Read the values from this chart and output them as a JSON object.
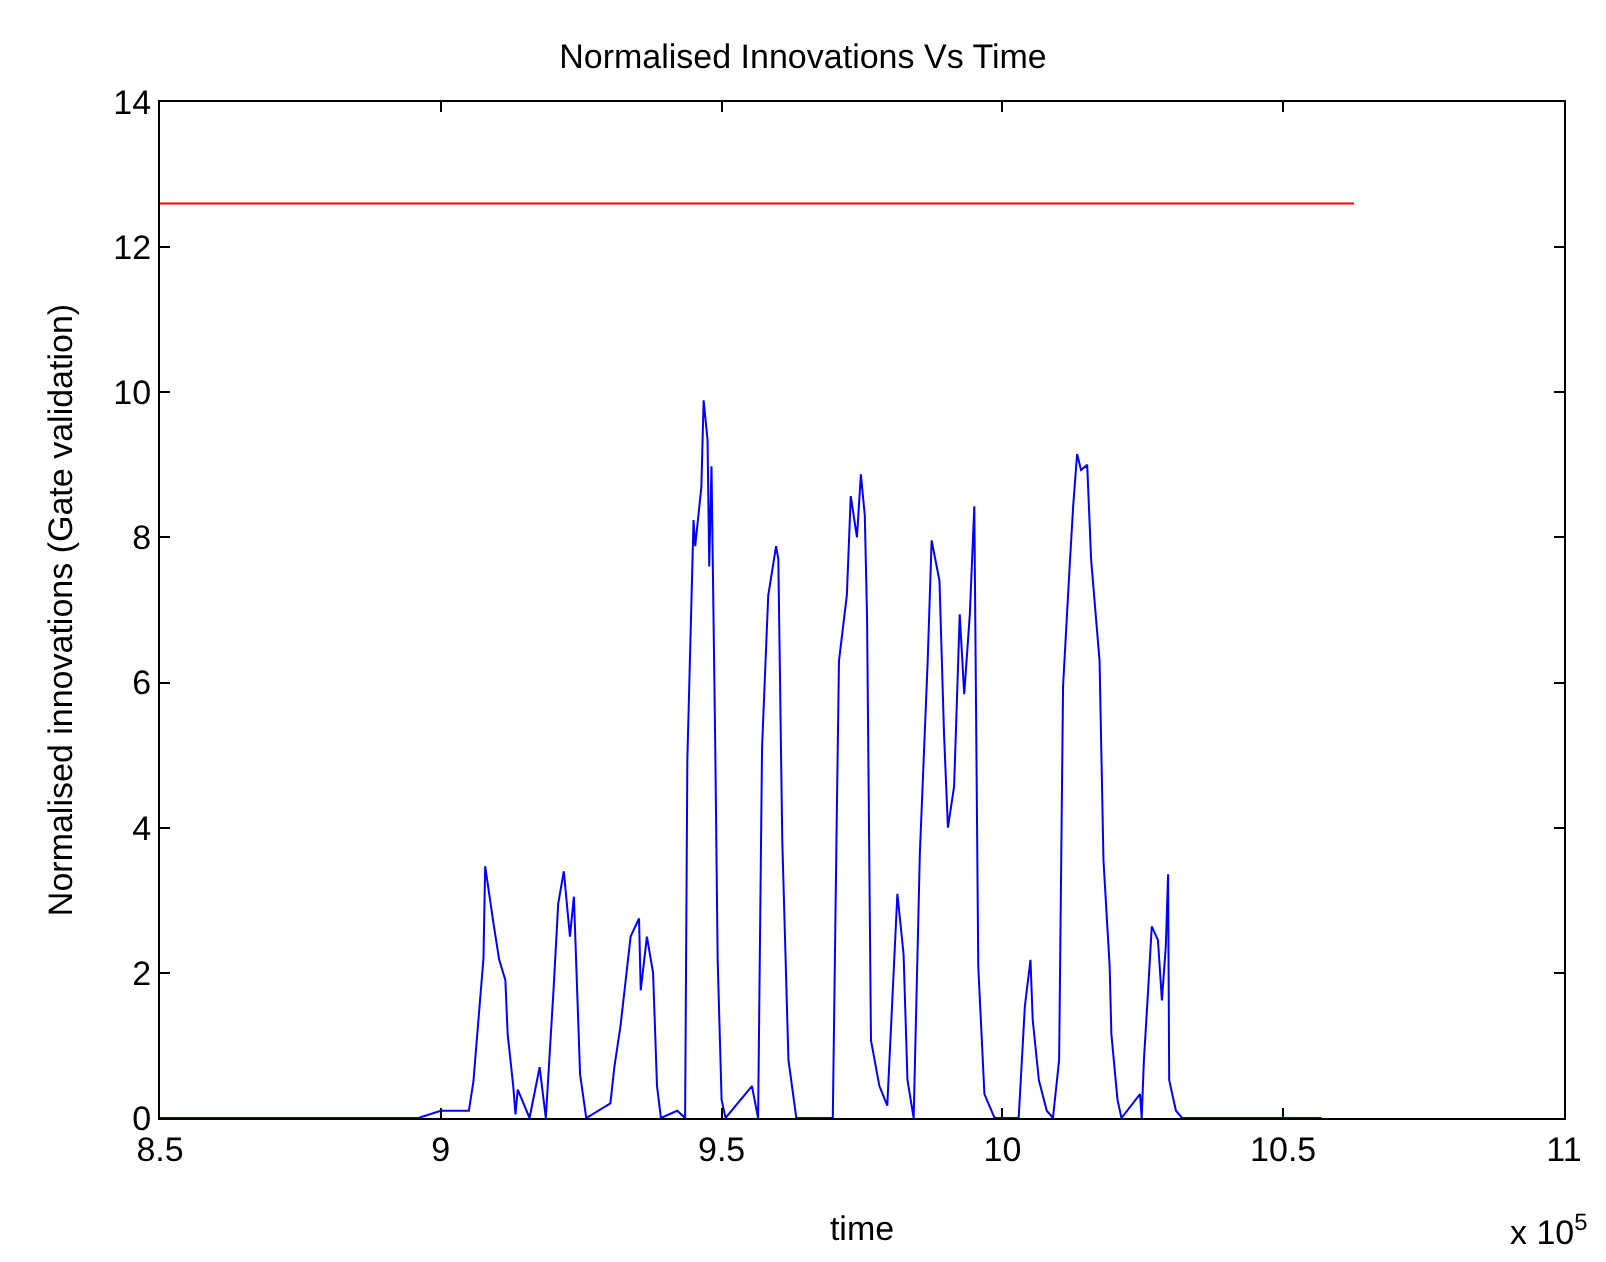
{
  "chart_data": {
    "type": "line",
    "title": "Normalised Innovations Vs Time",
    "xlabel": "time",
    "ylabel": "Normalised innovations (Gate validation)",
    "annotations": [
      "x 10$^{5}$"
    ],
    "xlim": [
      8.5,
      11
    ],
    "xticks": [
      8.5,
      9,
      9.5,
      10,
      10.5,
      11
    ],
    "ylim": [
      0,
      14
    ],
    "yticks": [
      0,
      2,
      4,
      6,
      8,
      10,
      12,
      14
    ],
    "grid": false,
    "line_style": "solid",
    "marker": "none",
    "series": [
      {
        "color": "#0000ff",
        "x": [
          8.5,
          8.96,
          9.0,
          9.05,
          9.058,
          9.076,
          9.079,
          9.094,
          9.104,
          9.115,
          9.119,
          9.129,
          9.133,
          9.137,
          9.158,
          9.176,
          9.187,
          9.201,
          9.209,
          9.219,
          9.23,
          9.237,
          9.248,
          9.259,
          9.302,
          9.309,
          9.32,
          9.338,
          9.353,
          9.356,
          9.367,
          9.378,
          9.385,
          9.392,
          9.421,
          9.435,
          9.439,
          9.45,
          9.453,
          9.464,
          9.468,
          9.475,
          9.478,
          9.482,
          9.489,
          9.493,
          9.5,
          9.507,
          9.554,
          9.565,
          9.572,
          9.583,
          9.597,
          9.601,
          9.608,
          9.619,
          9.633,
          9.698,
          9.705,
          9.709,
          9.723,
          9.73,
          9.741,
          9.748,
          9.755,
          9.759,
          9.766,
          9.781,
          9.795,
          9.813,
          9.824,
          9.831,
          9.842,
          9.853,
          9.867,
          9.874,
          9.888,
          9.896,
          9.903,
          9.914,
          9.924,
          9.932,
          9.942,
          9.95,
          9.957,
          9.968,
          9.986,
          10.029,
          10.04,
          10.05,
          10.054,
          10.065,
          10.079,
          10.09,
          10.101,
          10.108,
          10.119,
          10.126,
          10.133,
          10.14,
          10.151,
          10.158,
          10.169,
          10.173,
          10.18,
          10.191,
          10.194,
          10.205,
          10.212,
          10.245,
          10.248,
          10.252,
          10.259,
          10.266,
          10.277,
          10.284,
          10.291,
          10.295,
          10.297,
          10.309,
          10.32,
          10.568
        ],
        "values": [
          0,
          0,
          0.1,
          0.1,
          0.5,
          2.2,
          3.47,
          2.67,
          2.18,
          1.9,
          1.16,
          0.44,
          0.05,
          0.39,
          0,
          0.7,
          0,
          1.8,
          2.95,
          3.4,
          2.5,
          3.05,
          0.6,
          0,
          0.2,
          0.7,
          1.27,
          2.5,
          2.75,
          1.76,
          2.5,
          2.0,
          0.44,
          0,
          0.1,
          0,
          4.93,
          8.24,
          7.88,
          8.7,
          9.89,
          9.34,
          7.6,
          8.98,
          4.93,
          2.18,
          0.25,
          0,
          0.44,
          0,
          5.1,
          7.2,
          7.88,
          7.7,
          3.83,
          0.8,
          0,
          0,
          4.1,
          6.3,
          7.2,
          8.57,
          8.0,
          8.87,
          8.3,
          6.9,
          1.07,
          0.44,
          0.17,
          3.09,
          2.26,
          0.52,
          0,
          3.64,
          6.3,
          7.96,
          7.4,
          5.3,
          4.0,
          4.57,
          6.94,
          5.84,
          6.94,
          8.43,
          2.09,
          0.33,
          0,
          0,
          1.54,
          2.18,
          1.35,
          0.52,
          0.1,
          0,
          0.8,
          5.95,
          7.5,
          8.43,
          9.15,
          8.93,
          9.0,
          7.69,
          6.67,
          6.3,
          3.55,
          2.09,
          1.16,
          0.25,
          0,
          0.33,
          0,
          0.8,
          1.7,
          2.64,
          2.45,
          1.62,
          2.37,
          3.36,
          0.52,
          0.1,
          0,
          0
        ]
      },
      {
        "color": "#ff0000",
        "x": [
          8.5,
          10.626
        ],
        "values": [
          12.6,
          12.6
        ]
      }
    ]
  }
}
